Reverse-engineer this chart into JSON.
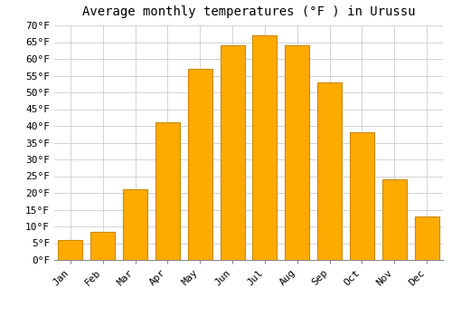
{
  "title": "Average monthly temperatures (°F ) in Urussu",
  "months": [
    "Jan",
    "Feb",
    "Mar",
    "Apr",
    "May",
    "Jun",
    "Jul",
    "Aug",
    "Sep",
    "Oct",
    "Nov",
    "Dec"
  ],
  "values": [
    6,
    8.5,
    21,
    41,
    57,
    64,
    67,
    64,
    53,
    38,
    24,
    13
  ],
  "bar_color": "#FFAA00",
  "bar_edge_color": "#CC8800",
  "background_color": "#FFFFFF",
  "plot_bg_color": "#FFFFFF",
  "grid_color": "#CCCCCC",
  "ylim": [
    0,
    70
  ],
  "yticks": [
    0,
    5,
    10,
    15,
    20,
    25,
    30,
    35,
    40,
    45,
    50,
    55,
    60,
    65,
    70
  ],
  "ylabel_suffix": "°F",
  "title_fontsize": 10,
  "tick_fontsize": 8,
  "font_family": "monospace"
}
